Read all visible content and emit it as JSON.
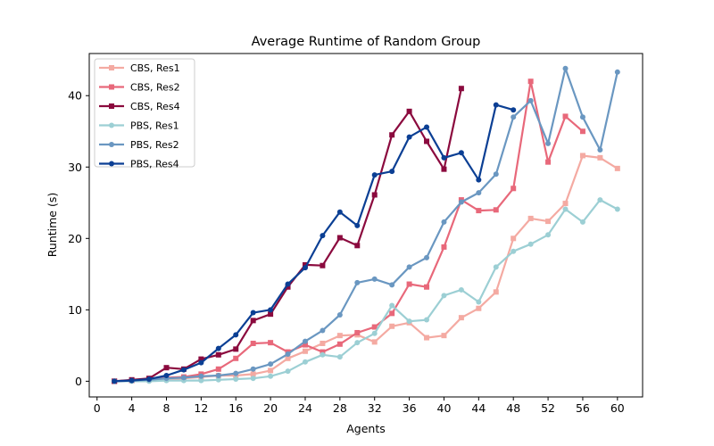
{
  "chart_data": {
    "type": "line",
    "title": "Average Runtime of Random Group",
    "xlabel": "Agents",
    "ylabel": "Runtime (s)",
    "xlim": [
      -0.9,
      62.9
    ],
    "ylim": [
      -2.2,
      45.9
    ],
    "xticks": [
      0,
      4,
      8,
      12,
      16,
      20,
      24,
      28,
      32,
      36,
      40,
      44,
      48,
      52,
      56,
      60
    ],
    "yticks": [
      0,
      10,
      20,
      30,
      40
    ],
    "grid": false,
    "legend": "top-left",
    "series": [
      {
        "name": "CBS, Res1",
        "color": "#f4aaa2",
        "marker": "square",
        "x": [
          2,
          4,
          6,
          8,
          10,
          12,
          14,
          16,
          18,
          20,
          22,
          24,
          26,
          28,
          30,
          32,
          34,
          36,
          38,
          40,
          42,
          44,
          46,
          48,
          50,
          52,
          54,
          56,
          58,
          60
        ],
        "y": [
          0.0,
          0.1,
          0.2,
          0.3,
          0.4,
          0.6,
          0.8,
          0.8,
          1.0,
          1.5,
          3.2,
          4.2,
          5.3,
          6.4,
          6.5,
          5.5,
          7.7,
          8.2,
          6.1,
          6.4,
          8.9,
          10.2,
          12.5,
          20.0,
          22.8,
          22.4,
          24.9,
          31.6,
          31.3,
          29.8
        ]
      },
      {
        "name": "CBS, Res2",
        "color": "#e8687a",
        "marker": "square",
        "x": [
          2,
          4,
          6,
          8,
          10,
          12,
          14,
          16,
          18,
          20,
          22,
          24,
          26,
          28,
          30,
          32,
          34,
          36,
          38,
          40,
          42,
          44,
          46,
          48,
          50,
          52,
          54,
          56
        ],
        "y": [
          0.0,
          0.1,
          0.3,
          0.5,
          0.6,
          1.0,
          1.7,
          3.2,
          5.3,
          5.4,
          4.1,
          5.1,
          4.1,
          5.2,
          6.8,
          7.6,
          9.5,
          13.6,
          13.2,
          18.8,
          25.4,
          23.9,
          24.0,
          27.0,
          42.0,
          30.7,
          37.1,
          35.0
        ]
      },
      {
        "name": "CBS, Res4",
        "color": "#8b0a3e",
        "marker": "square",
        "x": [
          2,
          4,
          6,
          8,
          10,
          12,
          14,
          16,
          18,
          20,
          22,
          24,
          26,
          28,
          30,
          32,
          34,
          36,
          38,
          40,
          42
        ],
        "y": [
          0.0,
          0.2,
          0.4,
          1.9,
          1.7,
          3.1,
          3.7,
          4.5,
          8.5,
          9.4,
          13.2,
          16.3,
          16.2,
          20.1,
          19.0,
          26.1,
          34.5,
          37.8,
          33.6,
          29.7,
          41.0
        ]
      },
      {
        "name": "PBS, Res1",
        "color": "#9ccfd4",
        "marker": "circle",
        "x": [
          2,
          4,
          6,
          8,
          10,
          12,
          14,
          16,
          18,
          20,
          22,
          24,
          26,
          28,
          30,
          32,
          34,
          36,
          38,
          40,
          42,
          44,
          46,
          48,
          50,
          52,
          54,
          56,
          58,
          60
        ],
        "y": [
          0.0,
          0.0,
          0.0,
          0.1,
          0.1,
          0.1,
          0.2,
          0.3,
          0.4,
          0.7,
          1.4,
          2.7,
          3.7,
          3.4,
          5.4,
          6.7,
          10.6,
          8.4,
          8.6,
          12.0,
          12.8,
          11.1,
          16.0,
          18.2,
          19.2,
          20.5,
          24.1,
          22.3,
          25.4,
          24.1
        ]
      },
      {
        "name": "PBS, Res2",
        "color": "#6a97c1",
        "marker": "circle",
        "x": [
          2,
          4,
          6,
          8,
          10,
          12,
          14,
          16,
          18,
          20,
          22,
          24,
          26,
          28,
          30,
          32,
          34,
          36,
          38,
          40,
          42,
          44,
          46,
          48,
          50,
          52,
          54,
          56,
          58,
          60
        ],
        "y": [
          0.0,
          0.1,
          0.2,
          0.4,
          0.5,
          0.7,
          0.8,
          1.1,
          1.7,
          2.4,
          3.8,
          5.6,
          7.1,
          9.3,
          13.8,
          14.3,
          13.5,
          16.0,
          17.3,
          22.3,
          25.1,
          26.4,
          29.0,
          37.0,
          39.3,
          33.3,
          43.8,
          37.0,
          32.4,
          43.3
        ]
      },
      {
        "name": "PBS, Res4",
        "color": "#0b3f94",
        "marker": "circle",
        "x": [
          2,
          4,
          6,
          8,
          10,
          12,
          14,
          16,
          18,
          20,
          22,
          24,
          26,
          28,
          30,
          32,
          34,
          36,
          38,
          40,
          42,
          44,
          46,
          48
        ],
        "y": [
          0.0,
          0.1,
          0.3,
          0.8,
          1.6,
          2.6,
          4.6,
          6.5,
          9.6,
          10.0,
          13.6,
          15.9,
          20.4,
          23.7,
          21.8,
          28.9,
          29.4,
          34.2,
          35.6,
          31.3,
          32.0,
          28.2,
          38.7,
          38.0
        ]
      }
    ]
  }
}
